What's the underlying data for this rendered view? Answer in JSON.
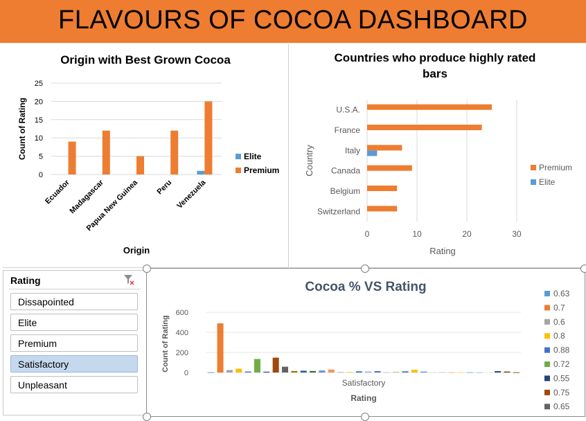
{
  "dashboard": {
    "title": "FLAVOURS OF COCOA DASHBOARD"
  },
  "colors": {
    "banner": "#ee7d31",
    "premium": "#ed7d31",
    "elite": "#5b9bd5",
    "selected": "#c5d9ee"
  },
  "slicer": {
    "header": "Rating",
    "clear_icon": "clear-filter-icon",
    "items": [
      {
        "label": "Dissapointed",
        "selected": false
      },
      {
        "label": "Elite",
        "selected": false
      },
      {
        "label": "Premium",
        "selected": false
      },
      {
        "label": "Satisfactory",
        "selected": true
      },
      {
        "label": "Unpleasant",
        "selected": false
      }
    ]
  },
  "chart_data": [
    {
      "type": "bar",
      "title": "Origin with Best Grown Cocoa",
      "xlabel": "Origin",
      "ylabel": "Count of Rating",
      "categories": [
        "Ecuador",
        "Madagascar",
        "Papua New Guinea",
        "Peru",
        "Venezuela"
      ],
      "series": [
        {
          "name": "Elite",
          "color": "#5b9bd5",
          "values": [
            0,
            0,
            0,
            0,
            1
          ]
        },
        {
          "name": "Premium",
          "color": "#ed7d31",
          "values": [
            9,
            12,
            5,
            12,
            20
          ]
        }
      ],
      "ylim": [
        0,
        25
      ],
      "yticks": [
        "0",
        "5",
        "10",
        "15",
        "20",
        "25"
      ],
      "grid": true,
      "legend": "right"
    },
    {
      "type": "bar",
      "orientation": "horizontal",
      "title": "Countries who produce highly rated bars",
      "xlabel": "Rating",
      "ylabel": "Country",
      "categories": [
        "U.S.A.",
        "France",
        "Italy",
        "Canada",
        "Belgium",
        "Switzerland"
      ],
      "series": [
        {
          "name": "Premium",
          "color": "#ed7d31",
          "values": [
            25,
            23,
            7,
            9,
            6,
            6
          ]
        },
        {
          "name": "Elite",
          "color": "#5b9bd5",
          "values": [
            0,
            0,
            2,
            0,
            0,
            0
          ]
        }
      ],
      "xlim": [
        0,
        30
      ],
      "xticks": [
        "0",
        "10",
        "20",
        "30"
      ],
      "grid": true,
      "legend": "right"
    },
    {
      "type": "bar",
      "title": "Cocoa % VS Rating",
      "xlabel": "Rating",
      "ylabel": "Count of Rating",
      "categories": [
        "Satisfactory"
      ],
      "ylim": [
        0,
        600
      ],
      "yticks": [
        "0",
        "200",
        "400",
        "600"
      ],
      "legend": "right",
      "series": [
        {
          "name": "0.63",
          "color": "#5b9bd5",
          "values": [
            3
          ]
        },
        {
          "name": "0.7",
          "color": "#ed7d31",
          "values": [
            490
          ]
        },
        {
          "name": "0.6",
          "color": "#a5a5a5",
          "values": [
            25
          ]
        },
        {
          "name": "0.8",
          "color": "#ffc000",
          "values": [
            38
          ]
        },
        {
          "name": "0.88",
          "color": "#4472c4",
          "values": [
            10
          ]
        },
        {
          "name": "0.72",
          "color": "#70ad47",
          "values": [
            135
          ]
        },
        {
          "name": "0.55",
          "color": "#264478",
          "values": [
            8
          ]
        },
        {
          "name": "0.75",
          "color": "#9e480e",
          "values": [
            148
          ]
        },
        {
          "name": "0.65",
          "color": "#636363",
          "values": [
            58
          ]
        },
        {
          "name": "",
          "color": "#997300",
          "values": [
            15
          ]
        },
        {
          "name": "",
          "color": "#255e91",
          "values": [
            18
          ]
        },
        {
          "name": "",
          "color": "#43682b",
          "values": [
            15
          ]
        },
        {
          "name": "",
          "color": "#698ed0",
          "values": [
            20
          ]
        },
        {
          "name": "",
          "color": "#f1975a",
          "values": [
            30
          ]
        },
        {
          "name": "",
          "color": "#b7b7b7",
          "values": [
            5
          ]
        },
        {
          "name": "",
          "color": "#ffcd33",
          "values": [
            6
          ]
        },
        {
          "name": "",
          "color": "#2e75b6",
          "values": [
            12
          ]
        },
        {
          "name": "",
          "color": "#8faadc",
          "values": [
            10
          ]
        },
        {
          "name": "",
          "color": "#4472c4",
          "values": [
            14
          ]
        },
        {
          "name": "",
          "color": "#c9c9c9",
          "values": [
            3
          ]
        },
        {
          "name": "",
          "color": "#a9d18e",
          "values": [
            8
          ]
        },
        {
          "name": "",
          "color": "#4472c4",
          "values": [
            12
          ]
        },
        {
          "name": "",
          "color": "#ffc000",
          "values": [
            28
          ]
        },
        {
          "name": "",
          "color": "#5b9bd5",
          "values": [
            10
          ]
        },
        {
          "name": "",
          "color": "#d9d9d9",
          "values": [
            3
          ]
        },
        {
          "name": "",
          "color": "#bdd7ee",
          "values": [
            5
          ]
        },
        {
          "name": "",
          "color": "#f4b183",
          "values": [
            3
          ]
        },
        {
          "name": "",
          "color": "#ffd966",
          "values": [
            4
          ]
        },
        {
          "name": "",
          "color": "#8faadc",
          "values": [
            3
          ]
        },
        {
          "name": "",
          "color": "#9dc3e6",
          "values": [
            3
          ]
        },
        {
          "name": "",
          "color": "#e2efda",
          "values": [
            3
          ]
        },
        {
          "name": "",
          "color": "#1f4e79",
          "values": [
            14
          ]
        },
        {
          "name": "",
          "color": "#843c0c",
          "values": [
            10
          ]
        },
        {
          "name": "",
          "color": "#7f6000",
          "values": [
            3
          ]
        }
      ]
    }
  ]
}
